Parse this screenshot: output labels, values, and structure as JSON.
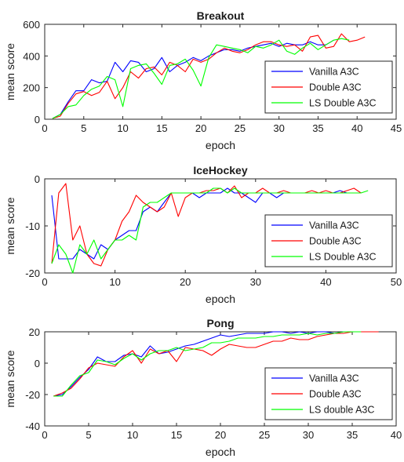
{
  "chart_data": [
    {
      "type": "line",
      "title": "Breakout",
      "xlabel": "epoch",
      "ylabel": "mean score",
      "xlim": [
        0,
        45
      ],
      "ylim": [
        0,
        600
      ],
      "xticks": [
        "0",
        "5",
        "10",
        "15",
        "20",
        "25",
        "30",
        "35",
        "40",
        "45"
      ],
      "yticks": [
        "0",
        "200",
        "400",
        "600"
      ],
      "legend_position": "bottom-right",
      "series": [
        {
          "name": "Vanilla A3C",
          "color": "#0000ff",
          "x": [
            1,
            2,
            3,
            4,
            5,
            6,
            7,
            8,
            9,
            10,
            11,
            12,
            13,
            14,
            15,
            16,
            17,
            18,
            19,
            20,
            21,
            22,
            23,
            24,
            25,
            26,
            27,
            28,
            29,
            30,
            31,
            32,
            33,
            34,
            35,
            36,
            37
          ],
          "y": [
            5,
            30,
            110,
            180,
            180,
            250,
            230,
            240,
            360,
            300,
            370,
            360,
            300,
            320,
            390,
            300,
            340,
            360,
            390,
            370,
            400,
            420,
            440,
            440,
            430,
            450,
            460,
            470,
            480,
            460,
            480,
            470,
            470,
            490,
            470,
            470,
            500
          ]
        },
        {
          "name": "Double A3C",
          "color": "#ff0000",
          "x": [
            1,
            2,
            3,
            4,
            5,
            6,
            7,
            8,
            9,
            10,
            11,
            12,
            13,
            14,
            15,
            16,
            17,
            18,
            19,
            20,
            21,
            22,
            23,
            24,
            25,
            26,
            27,
            28,
            29,
            30,
            31,
            32,
            33,
            34,
            35,
            36,
            37,
            38,
            39,
            40,
            41
          ],
          "y": [
            5,
            20,
            100,
            160,
            175,
            150,
            170,
            240,
            130,
            200,
            300,
            260,
            320,
            330,
            280,
            360,
            340,
            300,
            380,
            360,
            380,
            420,
            450,
            430,
            420,
            440,
            470,
            490,
            490,
            470,
            460,
            470,
            430,
            520,
            530,
            450,
            460,
            540,
            490,
            500,
            520
          ]
        },
        {
          "name": "LS Double A3C",
          "color": "#00ff00",
          "x": [
            1,
            2,
            3,
            4,
            5,
            6,
            7,
            8,
            9,
            10,
            11,
            12,
            13,
            14,
            15,
            16,
            17,
            18,
            19,
            20,
            21,
            22,
            23,
            24,
            25,
            26,
            27,
            28,
            29,
            30,
            31,
            32,
            33,
            34,
            35,
            36,
            37,
            38,
            39
          ],
          "y": [
            5,
            30,
            80,
            90,
            150,
            190,
            210,
            270,
            250,
            80,
            320,
            340,
            350,
            290,
            220,
            340,
            350,
            380,
            310,
            210,
            390,
            470,
            460,
            450,
            440,
            420,
            460,
            450,
            470,
            500,
            430,
            410,
            450,
            480,
            440,
            470,
            500,
            510,
            500
          ]
        }
      ]
    },
    {
      "type": "line",
      "title": "IceHockey",
      "xlabel": "epoch",
      "ylabel": "mean score",
      "xlim": [
        0,
        50
      ],
      "ylim": [
        -20,
        0
      ],
      "xticks": [
        "0",
        "10",
        "20",
        "30",
        "40",
        "50"
      ],
      "yticks": [
        "-20",
        "-10",
        "0"
      ],
      "legend_position": "bottom-right",
      "series": [
        {
          "name": "Vanilla A3C",
          "color": "#0000ff",
          "x": [
            1,
            2,
            3,
            4,
            5,
            6,
            7,
            8,
            9,
            10,
            11,
            12,
            13,
            14,
            15,
            16,
            17,
            18,
            19,
            20,
            21,
            22,
            23,
            24,
            25,
            26,
            27,
            28,
            29,
            30,
            31,
            32,
            33,
            34,
            35,
            36,
            37,
            38,
            39,
            40,
            41,
            42,
            43,
            44,
            45
          ],
          "y": [
            -3.5,
            -17,
            -17,
            -17,
            -15,
            -16,
            -17,
            -14,
            -15,
            -13,
            -12,
            -11,
            -11,
            -7,
            -6,
            -7,
            -5,
            -3,
            -3,
            -3,
            -3,
            -4,
            -3,
            -3,
            -3,
            -2,
            -3,
            -3,
            -4,
            -5,
            -3,
            -3,
            -4,
            -3,
            -3,
            -3,
            -3,
            -3,
            -3,
            -3,
            -3,
            -2.5,
            -3,
            -3,
            -3
          ]
        },
        {
          "name": "Double A3C",
          "color": "#ff0000",
          "x": [
            1,
            2,
            3,
            4,
            5,
            6,
            7,
            8,
            9,
            10,
            11,
            12,
            13,
            14,
            15,
            16,
            17,
            18,
            19,
            20,
            21,
            22,
            23,
            24,
            25,
            26,
            27,
            28,
            29,
            30,
            31,
            32,
            33,
            34,
            35,
            36,
            37,
            38,
            39,
            40,
            41,
            42,
            43,
            44,
            45
          ],
          "y": [
            -18,
            -3,
            -1,
            -13,
            -10,
            -16,
            -18,
            -18.5,
            -15,
            -13,
            -9,
            -7,
            -3.5,
            -5,
            -6,
            -7,
            -6,
            -3,
            -8,
            -4,
            -3,
            -3,
            -2.5,
            -2.5,
            -2,
            -3,
            -1.5,
            -4,
            -3,
            -3,
            -2,
            -3,
            -3,
            -2.5,
            -3,
            -3,
            -3,
            -2.5,
            -3,
            -2.5,
            -3,
            -3,
            -2.5,
            -2,
            -3
          ]
        },
        {
          "name": "LS Double A3C",
          "color": "#00ff00",
          "x": [
            1,
            2,
            3,
            4,
            5,
            6,
            7,
            8,
            9,
            10,
            11,
            12,
            13,
            14,
            15,
            16,
            17,
            18,
            19,
            20,
            21,
            22,
            23,
            24,
            25,
            26,
            27,
            28,
            29,
            30,
            31,
            32,
            33,
            34,
            35,
            36,
            37,
            38,
            39,
            40,
            41,
            42,
            43,
            44,
            45,
            46
          ],
          "y": [
            -18,
            -14,
            -16,
            -20,
            -14,
            -16,
            -13,
            -17,
            -15,
            -13,
            -13,
            -12,
            -13,
            -6,
            -5,
            -5,
            -4,
            -3,
            -3,
            -3,
            -3,
            -3,
            -3,
            -2,
            -2,
            -3,
            -2,
            -3,
            -3,
            -3,
            -3,
            -3,
            -3,
            -3,
            -3,
            -3,
            -3,
            -3,
            -3,
            -3,
            -3,
            -3,
            -3,
            -3,
            -3,
            -2.5
          ]
        }
      ]
    },
    {
      "type": "line",
      "title": "Pong",
      "xlabel": "epoch",
      "ylabel": "mean score",
      "xlim": [
        0,
        40
      ],
      "ylim": [
        -40,
        20
      ],
      "xticks": [
        "0",
        "5",
        "10",
        "15",
        "20",
        "25",
        "30",
        "35",
        "40"
      ],
      "yticks": [
        "-40",
        "-20",
        "0",
        "20"
      ],
      "legend_position": "bottom-right",
      "series": [
        {
          "name": "Vanilla A3C",
          "color": "#0000ff",
          "x": [
            1,
            2,
            3,
            4,
            5,
            6,
            7,
            8,
            9,
            10,
            11,
            12,
            13,
            14,
            15,
            16,
            17,
            18,
            19,
            20,
            21,
            22,
            23,
            24,
            25,
            26,
            27,
            28,
            29,
            30,
            31,
            32,
            33,
            34,
            35,
            36,
            37
          ],
          "y": [
            -21,
            -20,
            -15,
            -9,
            -4,
            4,
            1,
            1,
            5,
            6,
            4,
            11,
            6,
            7,
            9,
            11,
            12,
            14,
            16,
            18,
            17,
            18,
            19,
            19,
            19,
            20,
            20,
            19,
            20,
            19,
            20,
            20,
            19,
            20,
            20,
            20,
            20
          ]
        },
        {
          "name": "Double A3C",
          "color": "#ff0000",
          "x": [
            1,
            2,
            3,
            4,
            5,
            6,
            7,
            8,
            9,
            10,
            11,
            12,
            13,
            14,
            15,
            16,
            17,
            18,
            19,
            20,
            21,
            22,
            23,
            24,
            25,
            26,
            27,
            28,
            29,
            30,
            31,
            32,
            33,
            34,
            35,
            36,
            37,
            38
          ],
          "y": [
            -21,
            -19,
            -16,
            -10,
            -3,
            0,
            -1,
            -2,
            4,
            8,
            0,
            9,
            6,
            8,
            1,
            10,
            9,
            8,
            5,
            9,
            12,
            11,
            10,
            10,
            12,
            14,
            14,
            16,
            15,
            15,
            17,
            18,
            19,
            19,
            20,
            20,
            20,
            20
          ]
        },
        {
          "name": "LS double A3C",
          "color": "#00ff00",
          "x": [
            1,
            2,
            3,
            4,
            5,
            6,
            7,
            8,
            9,
            10,
            11,
            12,
            13,
            14,
            15,
            16,
            17,
            18,
            19,
            20,
            21,
            22,
            23,
            24,
            25,
            26,
            27,
            28,
            29,
            30,
            31,
            32,
            33,
            34,
            35,
            36
          ],
          "y": [
            -21,
            -21,
            -14,
            -8,
            -6,
            2,
            1,
            -1,
            3,
            6,
            2,
            6,
            8,
            8,
            10,
            8,
            9,
            10,
            13,
            13,
            14,
            16,
            16,
            16,
            17,
            17,
            18,
            18,
            18,
            19,
            18,
            19,
            19,
            20,
            20,
            20
          ]
        }
      ]
    }
  ]
}
